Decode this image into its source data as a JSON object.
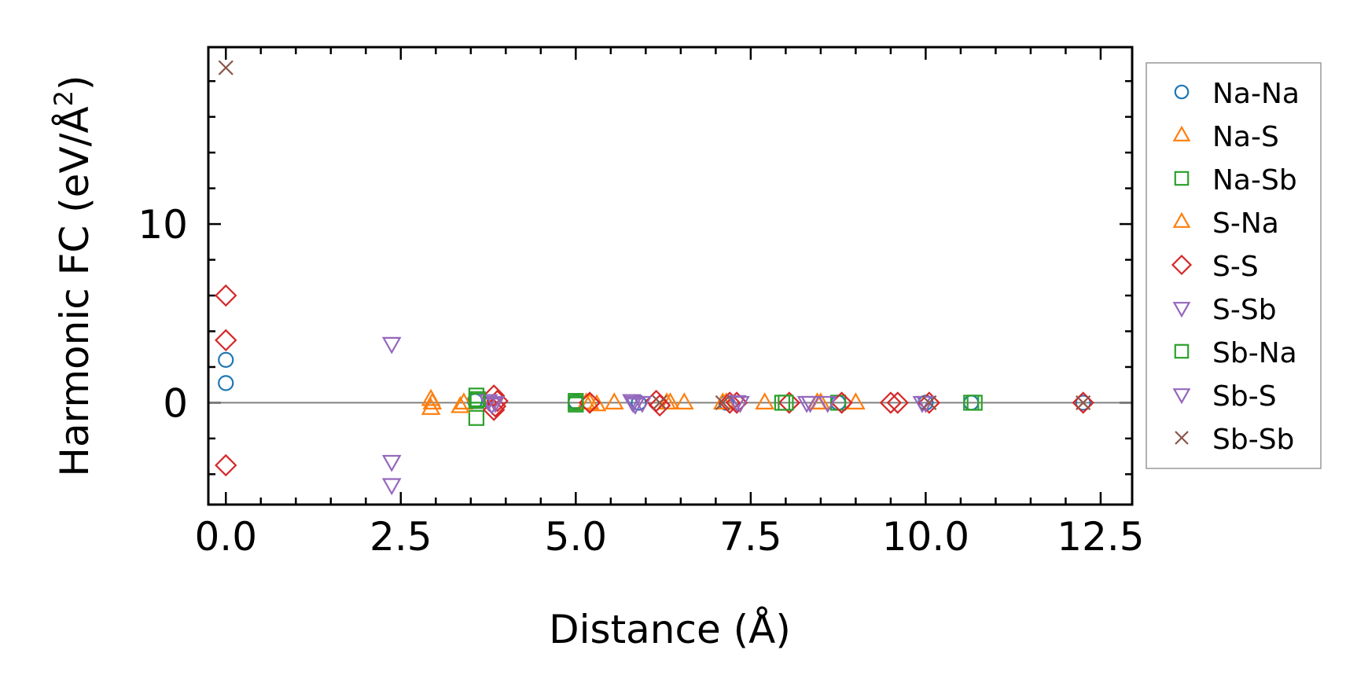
{
  "chart_data": {
    "type": "scatter",
    "title": "",
    "xlabel": "Distance (Å)",
    "ylabel_main": "Harmonic FC (eV/Å",
    "ylabel_sup": "2",
    "ylabel_close": ")",
    "xlim": [
      -0.25,
      12.95
    ],
    "ylim": [
      -5.7,
      19.9
    ],
    "x_ticks": [
      0.0,
      2.5,
      5.0,
      7.5,
      10.0,
      12.5
    ],
    "x_tick_labels": [
      "0.0",
      "2.5",
      "5.0",
      "7.5",
      "10.0",
      "12.5"
    ],
    "y_ticks": [
      0,
      10
    ],
    "y_tick_labels": [
      "0",
      "10"
    ],
    "reference_line_y": 0,
    "grid": false,
    "legend_position": "right",
    "series": [
      {
        "name": "Na-Na",
        "marker": "circle",
        "color": "#1f77b4",
        "points": [
          [
            0.0,
            2.4
          ],
          [
            0.0,
            1.1
          ],
          [
            3.56,
            0.1
          ],
          [
            5.0,
            0.05
          ],
          [
            5.9,
            0.0
          ],
          [
            7.15,
            0.0
          ],
          [
            8.75,
            0.0
          ],
          [
            10.0,
            0.0
          ],
          [
            10.65,
            0.0
          ],
          [
            12.25,
            0.0
          ]
        ]
      },
      {
        "name": "Na-S",
        "marker": "triangle-up",
        "color": "#ff7f0e",
        "points": [
          [
            2.93,
            0.2
          ],
          [
            2.93,
            -0.3
          ],
          [
            3.4,
            0.0
          ],
          [
            5.15,
            0.0
          ],
          [
            5.3,
            -0.1
          ],
          [
            5.55,
            0.0
          ],
          [
            6.3,
            0.0
          ],
          [
            6.55,
            0.0
          ],
          [
            7.15,
            0.0
          ],
          [
            7.7,
            0.0
          ],
          [
            8.45,
            0.0
          ],
          [
            9.0,
            0.0
          ]
        ]
      },
      {
        "name": "Na-Sb",
        "marker": "square",
        "color": "#2ca02c",
        "points": [
          [
            3.58,
            0.4
          ],
          [
            3.58,
            -0.85
          ],
          [
            3.58,
            0.1
          ],
          [
            5.0,
            0.1
          ],
          [
            5.0,
            -0.1
          ],
          [
            7.95,
            0.0
          ],
          [
            8.75,
            0.0
          ],
          [
            10.65,
            0.0
          ]
        ]
      },
      {
        "name": "S-Na",
        "marker": "triangle-up",
        "color": "#ff7f0e",
        "points": [
          [
            2.95,
            0.0
          ],
          [
            3.35,
            -0.2
          ],
          [
            5.2,
            0.0
          ],
          [
            6.35,
            0.0
          ],
          [
            7.1,
            0.0
          ],
          [
            8.5,
            0.0
          ]
        ]
      },
      {
        "name": "S-S",
        "marker": "diamond",
        "color": "#d62728",
        "points": [
          [
            0.0,
            6.0
          ],
          [
            0.0,
            3.5
          ],
          [
            0.0,
            -3.5
          ],
          [
            3.83,
            0.4
          ],
          [
            3.83,
            -0.4
          ],
          [
            3.88,
            0.1
          ],
          [
            3.85,
            -0.2
          ],
          [
            5.2,
            0.0
          ],
          [
            6.15,
            0.1
          ],
          [
            6.2,
            -0.15
          ],
          [
            7.2,
            0.0
          ],
          [
            7.3,
            0.0
          ],
          [
            8.05,
            0.0
          ],
          [
            8.8,
            0.0
          ],
          [
            9.5,
            0.0
          ],
          [
            9.6,
            0.0
          ],
          [
            10.05,
            0.0
          ],
          [
            12.25,
            0.0
          ]
        ]
      },
      {
        "name": "S-Sb",
        "marker": "triangle-down",
        "color": "#9467bd",
        "points": [
          [
            2.37,
            3.3
          ],
          [
            2.37,
            -3.3
          ],
          [
            2.37,
            -4.6
          ],
          [
            3.75,
            0.1
          ],
          [
            3.8,
            -0.1
          ],
          [
            5.8,
            0.1
          ],
          [
            5.85,
            -0.1
          ],
          [
            5.95,
            0.0
          ],
          [
            7.35,
            0.0
          ],
          [
            8.35,
            0.0
          ],
          [
            8.6,
            0.0
          ],
          [
            9.95,
            0.0
          ]
        ]
      },
      {
        "name": "Sb-Na",
        "marker": "square",
        "color": "#2ca02c",
        "points": [
          [
            3.6,
            0.2
          ],
          [
            5.0,
            0.0
          ],
          [
            8.0,
            0.0
          ],
          [
            10.7,
            0.0
          ]
        ]
      },
      {
        "name": "Sb-S",
        "marker": "triangle-down",
        "color": "#9467bd",
        "points": [
          [
            3.85,
            0.0
          ],
          [
            5.82,
            0.0
          ],
          [
            7.3,
            0.05
          ],
          [
            8.3,
            0.0
          ],
          [
            10.0,
            0.0
          ]
        ]
      },
      {
        "name": "Sb-Sb",
        "marker": "x",
        "color": "#8c564b",
        "points": [
          [
            0.0,
            18.75
          ],
          [
            6.2,
            0.0
          ],
          [
            7.1,
            0.0
          ],
          [
            10.05,
            0.0
          ],
          [
            12.25,
            0.0
          ]
        ]
      }
    ]
  }
}
